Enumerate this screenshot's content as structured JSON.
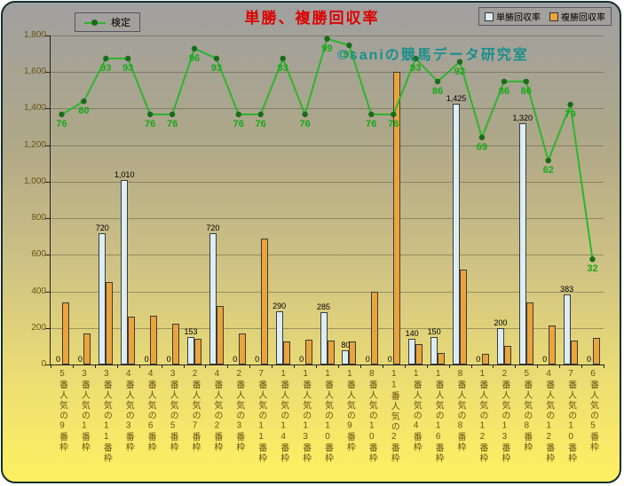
{
  "watermark": "©saniの競馬データ研究室",
  "chart_data": {
    "type": "bar",
    "title": "単勝、複勝回収率",
    "grid": true,
    "legend_position": "top",
    "y_axis": {
      "min": 0,
      "max": 1800,
      "step": 200,
      "tick_labels": [
        "0",
        "200",
        "400",
        "600",
        "800",
        "1,000",
        "1,200",
        "1,400",
        "1,600",
        "1,800"
      ]
    },
    "secondary_y_axis": {
      "min": 0,
      "max": 100,
      "visible": false
    },
    "categories": [
      "5番人気の9番枠",
      "3番人気の1番枠",
      "3番人気の11番枠",
      "4番人気の3番枠",
      "4番人気の6番枠",
      "3番人気の5番枠",
      "2番人気の7番枠",
      "4番人気の2番枠",
      "2番人気の3番枠",
      "7番人気の11番枠",
      "1番人気の14番枠",
      "1番人気の13番枠",
      "1番人気の10番枠",
      "1番人気の9番枠",
      "8番人気の10番枠",
      "11番人気の2番枠",
      "1番人気の4番枠",
      "1番人気の16番枠",
      "8番人気の8番枠",
      "1番人気の12番枠",
      "2番人気の13番枠",
      "5番人気の8番枠",
      "4番人気の12番枠",
      "7番人気の10番枠",
      "6番人気の5番枠"
    ],
    "series": [
      {
        "name": "単勝回収率",
        "type": "bar",
        "color": "#dcedf4",
        "border_color": "#3c3c3c",
        "data_labels": true,
        "values": [
          0,
          0,
          720,
          1010,
          0,
          0,
          153,
          720,
          0,
          0,
          290,
          0,
          285,
          80,
          0,
          0,
          140,
          150,
          1425,
          0,
          200,
          1320,
          0,
          383,
          0
        ]
      },
      {
        "name": "複勝回収率",
        "type": "bar",
        "color": "#eaa43b",
        "border_color": "#3c3c3c",
        "data_labels": false,
        "values": [
          340,
          170,
          450,
          260,
          265,
          225,
          140,
          320,
          170,
          690,
          125,
          135,
          130,
          125,
          400,
          1600,
          110,
          65,
          520,
          60,
          100,
          340,
          215,
          130,
          145
        ]
      },
      {
        "name": "検定",
        "type": "line",
        "axis": "secondary",
        "color": "#2db52d",
        "marker_color": "#1a6b1a",
        "label_color": "#17a817",
        "data_labels": true,
        "values": [
          76,
          80,
          93,
          93,
          76,
          76,
          96,
          93,
          76,
          76,
          93,
          76,
          99,
          97,
          76,
          76,
          93,
          86,
          92,
          69,
          86,
          86,
          62,
          79,
          32
        ]
      }
    ]
  }
}
